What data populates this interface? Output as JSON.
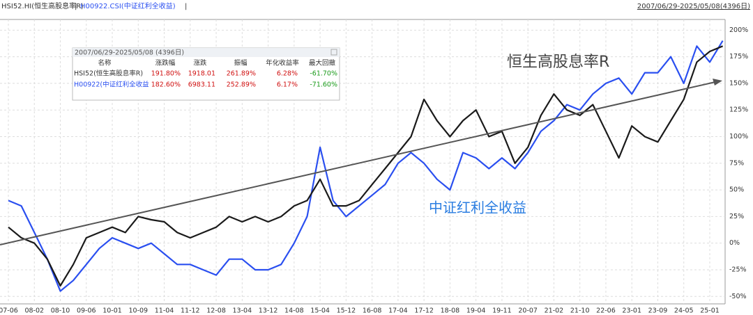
{
  "chart_data": {
    "type": "line",
    "header_separator": "|",
    "date_range": "2007/06/29-2025/05/08(4396日)",
    "categories": [
      "07-06",
      null,
      "08-02",
      null,
      "08-10",
      null,
      "09-06",
      null,
      "10-01",
      null,
      "10-09",
      null,
      "11-04",
      null,
      "11-12",
      null,
      "12-08",
      null,
      "13-04",
      null,
      "13-12",
      null,
      "14-08",
      null,
      "15-04",
      null,
      "15-12",
      null,
      "16-08",
      null,
      "17-04",
      null,
      "17-12",
      null,
      "18-08",
      null,
      "19-04",
      null,
      "19-11",
      null,
      "20-07",
      null,
      "21-02",
      null,
      "21-10",
      null,
      "22-06",
      null,
      "23-01",
      null,
      "23-09",
      null,
      "24-05",
      null,
      "25-01",
      null
    ],
    "series": [
      {
        "name": "HSI52.HI(恒生高股息率R)",
        "color": "#1a1a1a",
        "values": [
          15,
          5,
          0,
          -15,
          -40,
          -20,
          5,
          10,
          15,
          10,
          25,
          22,
          20,
          10,
          5,
          10,
          15,
          25,
          20,
          25,
          20,
          25,
          35,
          40,
          60,
          35,
          35,
          40,
          55,
          70,
          85,
          100,
          135,
          115,
          100,
          115,
          125,
          100,
          105,
          75,
          90,
          120,
          140,
          125,
          120,
          130,
          105,
          80,
          110,
          100,
          95,
          115,
          135,
          170,
          180,
          185
        ]
      },
      {
        "name": "H00922.CSI(中证红利全收益)",
        "color": "#2a4ff0",
        "values": [
          40,
          35,
          10,
          -15,
          -45,
          -35,
          -20,
          -5,
          5,
          0,
          -5,
          0,
          -10,
          -20,
          -20,
          -25,
          -30,
          -15,
          -15,
          -25,
          -25,
          -20,
          0,
          25,
          90,
          40,
          25,
          35,
          45,
          55,
          75,
          85,
          75,
          60,
          50,
          85,
          80,
          70,
          80,
          70,
          85,
          105,
          115,
          130,
          125,
          140,
          150,
          155,
          140,
          160,
          160,
          175,
          150,
          185,
          170,
          190
        ]
      }
    ],
    "ylim": [
      -57,
      210
    ],
    "yticks": [
      {
        "value": -50,
        "label": "-50%"
      },
      {
        "value": -25,
        "label": "-25%"
      },
      {
        "value": 0,
        "label": "0%"
      },
      {
        "value": 25,
        "label": "25%"
      },
      {
        "value": 50,
        "label": "50%"
      },
      {
        "value": 75,
        "label": "75%"
      },
      {
        "value": 100,
        "label": "100%"
      },
      {
        "value": 125,
        "label": "125%"
      },
      {
        "value": 150,
        "label": "150%"
      },
      {
        "value": 175,
        "label": "175%"
      },
      {
        "value": 200,
        "label": "200%"
      }
    ],
    "grid": true,
    "annotations": [
      "恒生高股息率R",
      "中证红利全收益"
    ]
  },
  "info_box": {
    "title": "2007/06/29-2025/05/08 (4396日)",
    "headers": [
      "名称",
      "涨跌幅",
      "涨跌",
      "振幅",
      "年化收益率",
      "最大回撤"
    ],
    "rows": [
      [
        "HSI52(恒生高股息率R)",
        "191.80%",
        "1918.01",
        "261.89%",
        "6.28%",
        "-61.70%"
      ],
      [
        "H00922(中证红利全收益",
        "182.60%",
        "6983.11",
        "252.89%",
        "6.17%",
        "-71.60%"
      ]
    ]
  }
}
